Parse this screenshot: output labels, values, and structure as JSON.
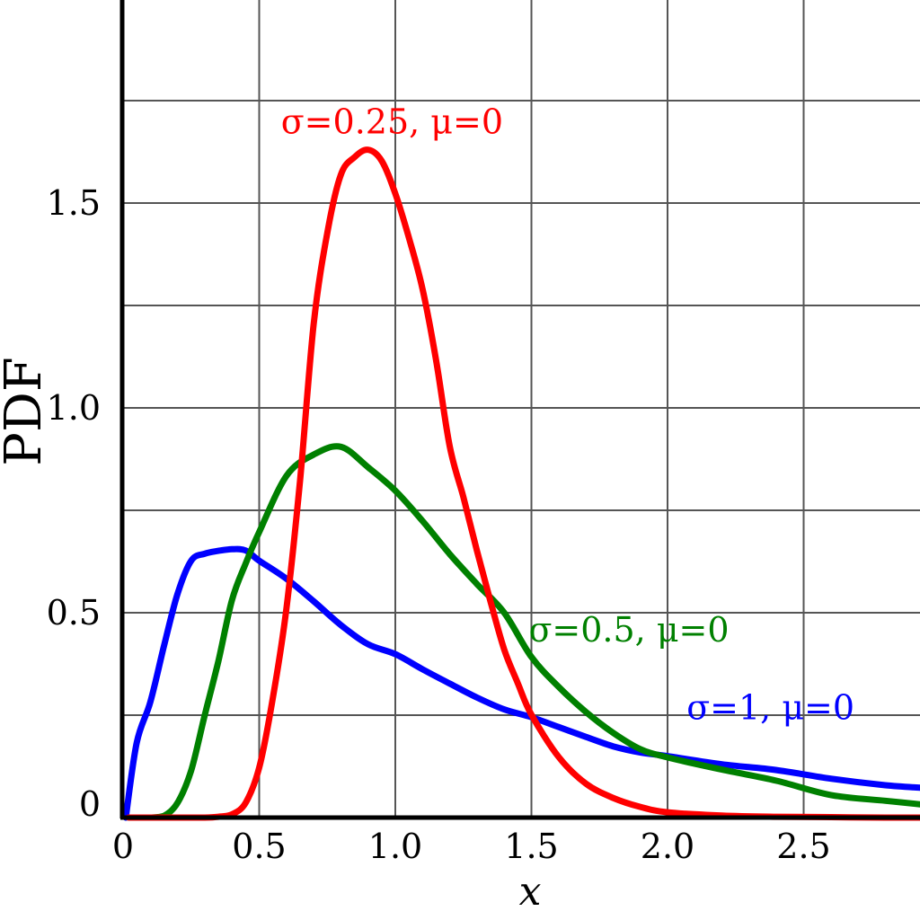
{
  "chart_data": {
    "type": "line",
    "title": "",
    "xlabel": "x",
    "ylabel": "PDF",
    "xlim": [
      0,
      2.95
    ],
    "ylim": [
      0,
      2.0
    ],
    "grid": true,
    "x_ticks": [
      0,
      0.5,
      1.0,
      1.5,
      2.0,
      2.5
    ],
    "x_tick_labels": [
      "0",
      "0.5",
      "1.0",
      "1.5",
      "2.0",
      "2.5"
    ],
    "x_gridlines": [
      0.5,
      1.0,
      1.5,
      2.0,
      2.5
    ],
    "y_ticks": [
      0,
      0.5,
      1.0,
      1.5
    ],
    "y_tick_labels": [
      "0",
      "0.5",
      "1.0",
      "1.5"
    ],
    "y_gridlines": [
      0.25,
      0.5,
      0.75,
      1.0,
      1.25,
      1.5,
      1.75
    ],
    "series": [
      {
        "name": "σ=1, μ=0",
        "color": "#0000ff",
        "label_anchor": [
          2.07,
          0.24
        ],
        "x": [
          0.01,
          0.05,
          0.1,
          0.15,
          0.2,
          0.25,
          0.3,
          0.35,
          0.4,
          0.45,
          0.5,
          0.6,
          0.7,
          0.8,
          0.9,
          1.0,
          1.1,
          1.2,
          1.3,
          1.4,
          1.5,
          1.6,
          1.7,
          1.8,
          1.9,
          2.0,
          2.2,
          2.4,
          2.6,
          2.8,
          2.95
        ],
        "y": [
          0.0,
          0.183,
          0.282,
          0.418,
          0.546,
          0.627,
          0.644,
          0.651,
          0.655,
          0.652,
          0.627,
          0.583,
          0.528,
          0.47,
          0.423,
          0.399,
          0.362,
          0.327,
          0.293,
          0.264,
          0.245,
          0.221,
          0.197,
          0.174,
          0.159,
          0.15,
          0.13,
          0.116,
          0.095,
          0.079,
          0.072
        ]
      },
      {
        "name": "σ=0.5, μ=0",
        "color": "#008000",
        "label_anchor": [
          1.49,
          0.43
        ],
        "x": [
          0.05,
          0.1,
          0.15,
          0.2,
          0.25,
          0.3,
          0.35,
          0.4,
          0.45,
          0.5,
          0.6,
          0.7,
          0.8,
          0.9,
          1.0,
          1.1,
          1.2,
          1.3,
          1.4,
          1.5,
          1.6,
          1.7,
          1.8,
          1.9,
          2.0,
          2.2,
          2.4,
          2.6,
          2.8,
          2.95
        ],
        "y": [
          0.0,
          0.0,
          0.004,
          0.036,
          0.115,
          0.25,
          0.382,
          0.531,
          0.62,
          0.697,
          0.834,
          0.886,
          0.905,
          0.855,
          0.798,
          0.724,
          0.643,
          0.57,
          0.5,
          0.392,
          0.319,
          0.258,
          0.207,
          0.167,
          0.147,
          0.117,
          0.09,
          0.055,
          0.041,
          0.031
        ]
      },
      {
        "name": "σ=0.25, μ=0",
        "color": "#ff0000",
        "label_anchor": [
          0.58,
          1.67
        ],
        "x": [
          0.02,
          0.1,
          0.2,
          0.3,
          0.35,
          0.4,
          0.45,
          0.5,
          0.55,
          0.6,
          0.65,
          0.7,
          0.75,
          0.8,
          0.85,
          0.9,
          0.95,
          1.0,
          1.05,
          1.1,
          1.15,
          1.2,
          1.25,
          1.3,
          1.35,
          1.4,
          1.45,
          1.5,
          1.6,
          1.7,
          1.8,
          1.9,
          2.0,
          2.2,
          2.4,
          2.6,
          2.8,
          2.95
        ],
        "y": [
          0.0,
          0.0,
          0.0,
          0.0,
          0.002,
          0.008,
          0.036,
          0.122,
          0.291,
          0.51,
          0.823,
          1.204,
          1.427,
          1.569,
          1.612,
          1.63,
          1.603,
          1.523,
          1.415,
          1.29,
          1.116,
          0.906,
          0.782,
          0.651,
          0.527,
          0.41,
          0.328,
          0.251,
          0.148,
          0.083,
          0.048,
          0.026,
          0.013,
          0.005,
          0.002,
          0.001,
          0.0,
          0.0
        ]
      }
    ]
  }
}
